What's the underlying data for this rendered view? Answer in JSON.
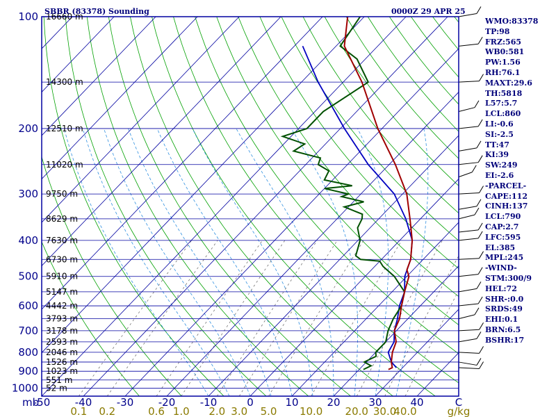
{
  "title_left": "SBBR (83378) Sounding",
  "title_right": "0000Z 29 APR 25",
  "colors": {
    "frame": "#0000a0",
    "isobar": "#0000a0",
    "isotherm": "#0000a0",
    "dry_adiabat": "#00a000",
    "moist_adiabat": "#3090e0",
    "mixing_ratio": "#606060",
    "temperature": "#a00000",
    "dewpoint": "#005000",
    "parcel": "#0000c0",
    "wind": "#000000",
    "text": "#00007a",
    "mixing_label": "#8a7a00"
  },
  "indices": [
    "WMO:83378",
    "TP:98",
    "FRZ:565",
    "WB0:581",
    "PW:1.56",
    "RH:76.1",
    "MAXT:29.6",
    "TH:5818",
    "L57:5.7",
    "LCL:860",
    "LI:-0.6",
    "SI:-2.5",
    "TT:47",
    "KI:39",
    "SW:249",
    "EI:-2.6",
    "-PARCEL-",
    "CAPE:112",
    "CINH:137",
    "LCL:790",
    "CAP:2.7",
    "LFC:595",
    "EL:385",
    "MPL:245",
    "-WIND-",
    "STM:300/9",
    "HEL:72",
    "SHR-:0.0",
    "SRDS:49",
    "EHI:0.1",
    "BRN:6.5",
    "BSHR:17"
  ],
  "chart_data": {
    "type": "skew-t",
    "title": "SBBR (83378) Sounding",
    "ylabel": "mb",
    "xlabel": "C",
    "pressure_labels": [
      "100",
      "200",
      "300",
      "400",
      "500",
      "600",
      "700",
      "800",
      "900",
      "1000"
    ],
    "pressure_ticks": [
      100,
      200,
      300,
      400,
      500,
      600,
      700,
      800,
      900,
      1000
    ],
    "height_labels": [
      "16660 m",
      "14300 m",
      "12510 m",
      "11020 m",
      "9750 m",
      "8629 m",
      "7630 m",
      "6730 m",
      "5910 m",
      "5147 m",
      "4442 m",
      "3793 m",
      "3178 m",
      "2593 m",
      "2046 m",
      "1526 m",
      "1023 m",
      "551 m",
      "52 m"
    ],
    "height_pressures": [
      100,
      150,
      200,
      250,
      300,
      350,
      400,
      450,
      500,
      550,
      600,
      650,
      700,
      750,
      800,
      850,
      900,
      950,
      1000
    ],
    "temp_labels": [
      "-50",
      "-40",
      "-30",
      "-20",
      "-10",
      "0",
      "10",
      "20",
      "30",
      "40",
      "C"
    ],
    "temp_ticks": [
      -50,
      -40,
      -30,
      -20,
      -10,
      0,
      10,
      20,
      30,
      40
    ],
    "mixing_ratio_labels": [
      "0.1",
      "0.2",
      "0.6",
      "1.0",
      "2.0",
      "3.0",
      "5.0",
      "10.0",
      "20.0",
      "30.0",
      "40.0",
      "g/kg"
    ],
    "mixing_ratio_values": [
      0.1,
      0.2,
      0.6,
      1.0,
      2.0,
      3.0,
      5.0,
      10.0,
      20.0,
      30.0,
      40.0
    ],
    "pressure_range": [
      100,
      1050
    ],
    "temperature_range": [
      -50,
      50
    ],
    "grid": true,
    "temperature": [
      [
        890,
        27
      ],
      [
        880,
        27.5
      ],
      [
        850,
        26
      ],
      [
        800,
        24
      ],
      [
        750,
        22.5
      ],
      [
        700,
        19.5
      ],
      [
        650,
        18
      ],
      [
        600,
        15.5
      ],
      [
        550,
        13
      ],
      [
        500,
        10.5
      ],
      [
        480,
        8.5
      ],
      [
        450,
        7
      ],
      [
        400,
        3
      ],
      [
        350,
        -2.5
      ],
      [
        300,
        -9
      ],
      [
        250,
        -18.5
      ],
      [
        200,
        -31
      ],
      [
        150,
        -45.5
      ],
      [
        120,
        -58
      ],
      [
        100,
        -64
      ]
    ],
    "dewpoint": [
      [
        890,
        21
      ],
      [
        870,
        22
      ],
      [
        850,
        19.5
      ],
      [
        820,
        21
      ],
      [
        800,
        20
      ],
      [
        750,
        20
      ],
      [
        700,
        18
      ],
      [
        650,
        16.5
      ],
      [
        600,
        15.5
      ],
      [
        550,
        13
      ],
      [
        500,
        7
      ],
      [
        470,
        2
      ],
      [
        455,
        0
      ],
      [
        450,
        -5
      ],
      [
        440,
        -7
      ],
      [
        400,
        -9.5
      ],
      [
        370,
        -13
      ],
      [
        350,
        -14
      ],
      [
        340,
        -15
      ],
      [
        325,
        -21
      ],
      [
        315,
        -17.5
      ],
      [
        305,
        -24
      ],
      [
        300,
        -23
      ],
      [
        290,
        -30
      ],
      [
        285,
        -24
      ],
      [
        275,
        -32
      ],
      [
        260,
        -33
      ],
      [
        250,
        -37
      ],
      [
        240,
        -38
      ],
      [
        230,
        -46
      ],
      [
        220,
        -45
      ],
      [
        210,
        -52
      ],
      [
        200,
        -48
      ],
      [
        180,
        -48
      ],
      [
        150,
        -44
      ],
      [
        130,
        -52
      ],
      [
        120,
        -59
      ],
      [
        100,
        -61
      ]
    ],
    "parcel": [
      [
        880,
        28.5
      ],
      [
        850,
        26
      ],
      [
        800,
        23
      ],
      [
        750,
        22
      ],
      [
        700,
        19.5
      ],
      [
        650,
        17.5
      ],
      [
        600,
        15
      ],
      [
        550,
        13
      ],
      [
        500,
        9.5
      ],
      [
        450,
        7
      ],
      [
        400,
        3
      ],
      [
        350,
        -3.5
      ],
      [
        300,
        -12
      ],
      [
        250,
        -25
      ],
      [
        200,
        -39
      ],
      [
        150,
        -56
      ],
      [
        120,
        -68
      ]
    ],
    "wind_pressures": [
      100,
      120,
      150,
      180,
      200,
      230,
      250,
      270,
      300,
      330,
      350,
      380,
      400,
      450,
      500,
      550,
      600,
      650,
      700,
      750,
      800,
      850,
      880
    ]
  }
}
